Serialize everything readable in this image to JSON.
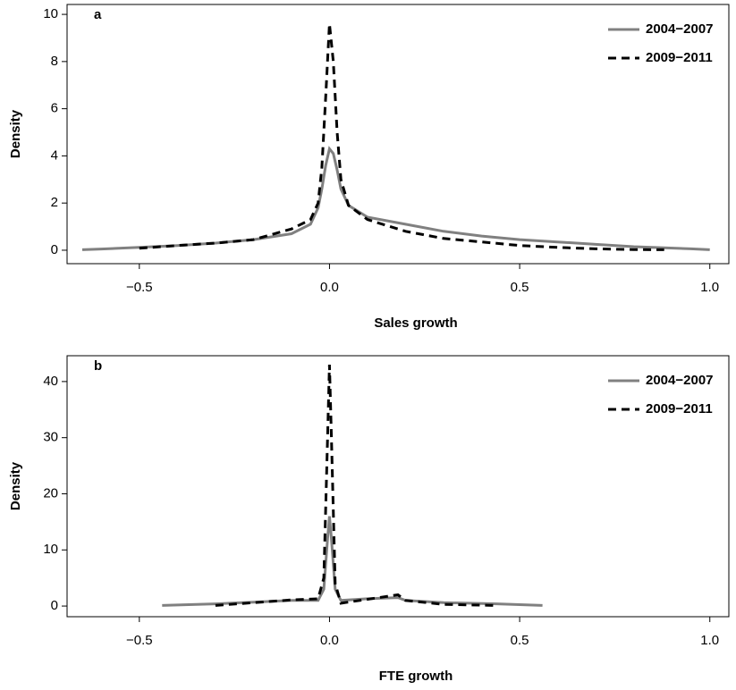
{
  "chart_data": [
    {
      "type": "line",
      "panel_label": "a",
      "x_label": "Sales growth",
      "y_label": "Density",
      "x": [
        -0.65,
        -0.6,
        -0.5,
        -0.4,
        -0.3,
        -0.2,
        -0.1,
        -0.05,
        -0.03,
        -0.02,
        -0.01,
        0,
        0.01,
        0.02,
        0.03,
        0.05,
        0.1,
        0.2,
        0.3,
        0.4,
        0.5,
        0.6,
        0.7,
        0.8,
        0.88,
        0.95,
        1.0
      ],
      "series": [
        {
          "name": "2004−2007",
          "color": "#808080",
          "dash": "solid",
          "values": [
            0.02,
            0.05,
            0.12,
            0.2,
            0.3,
            0.45,
            0.7,
            1.1,
            1.8,
            2.6,
            3.6,
            4.3,
            4.1,
            3.4,
            2.6,
            1.9,
            1.4,
            1.1,
            0.8,
            0.6,
            0.45,
            0.35,
            0.25,
            0.15,
            0.1,
            0.06,
            0.02
          ]
        },
        {
          "name": "2009−2011",
          "color": "#000000",
          "dash": "dashed",
          "values": [
            null,
            null,
            0.08,
            0.2,
            0.3,
            0.45,
            0.9,
            1.3,
            2.0,
            3.5,
            6.5,
            9.6,
            8.0,
            5.0,
            3.0,
            1.9,
            1.3,
            0.8,
            0.5,
            0.35,
            0.2,
            0.12,
            0.06,
            0.03,
            0.02,
            null,
            null
          ]
        }
      ],
      "xlim": [
        -0.69,
        1.05
      ],
      "ylim": [
        -0.57,
        10.42
      ],
      "xticks": [
        {
          "value": -0.5,
          "label": "−0.5"
        },
        {
          "value": 0,
          "label": "0.0"
        },
        0.5,
        {
          "value": 1,
          "label": "1.0"
        }
      ],
      "yticks": [
        0,
        2,
        4,
        6,
        8,
        10
      ],
      "legend": "top-right"
    },
    {
      "type": "line",
      "panel_label": "b",
      "x_label": "FTE growth",
      "y_label": "Density",
      "x": [
        -0.44,
        -0.3,
        -0.2,
        -0.1,
        -0.03,
        -0.015,
        -0.005,
        0,
        0.005,
        0.015,
        0.03,
        0.1,
        0.18,
        0.2,
        0.3,
        0.44,
        0.56
      ],
      "series": [
        {
          "name": "2004−2007",
          "color": "#808080",
          "dash": "solid",
          "values": [
            0.1,
            0.4,
            0.7,
            1.0,
            1.0,
            3,
            12,
            16,
            12,
            3,
            1.0,
            1.3,
            1.5,
            1.0,
            0.6,
            0.4,
            0.1
          ]
        },
        {
          "name": "2009−2011",
          "color": "#000000",
          "dash": "dashed",
          "values": [
            null,
            0.1,
            0.6,
            1.1,
            1.3,
            5,
            30,
            43,
            30,
            4,
            0.5,
            1.2,
            2.0,
            1.0,
            0.3,
            0.1,
            null
          ]
        }
      ],
      "xlim": [
        -0.69,
        1.05
      ],
      "ylim": [
        -1.9,
        44.6
      ],
      "xticks": [
        {
          "value": -0.5,
          "label": "−0.5"
        },
        {
          "value": 0,
          "label": "0.0"
        },
        0.5,
        {
          "value": 1,
          "label": "1.0"
        }
      ],
      "yticks": [
        0,
        10,
        20,
        30,
        40
      ],
      "legend": "top-right"
    }
  ]
}
